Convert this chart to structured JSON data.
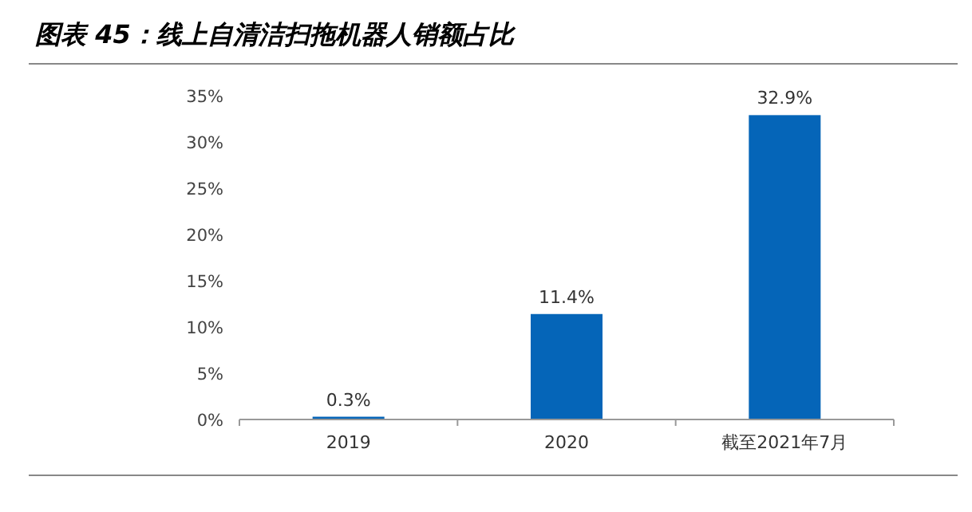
{
  "chart_data": {
    "type": "bar",
    "title": "图表 45：线上自清洁扫拖机器人销额占比",
    "categories": [
      "2019",
      "2020",
      "截至2021年7月"
    ],
    "values": [
      0.3,
      11.4,
      32.9
    ],
    "value_labels": [
      "0.3%",
      "11.4%",
      "32.9%"
    ],
    "color": "#0565b8",
    "ylim": [
      0,
      35
    ],
    "yticks": [
      {
        "value": 0,
        "label": "0%"
      },
      {
        "value": 5,
        "label": "5%"
      },
      {
        "value": 10,
        "label": "10%"
      },
      {
        "value": 15,
        "label": "15%"
      },
      {
        "value": 20,
        "label": "20%"
      },
      {
        "value": 25,
        "label": "25%"
      },
      {
        "value": 30,
        "label": "30%"
      },
      {
        "value": 35,
        "label": "35%"
      }
    ]
  }
}
